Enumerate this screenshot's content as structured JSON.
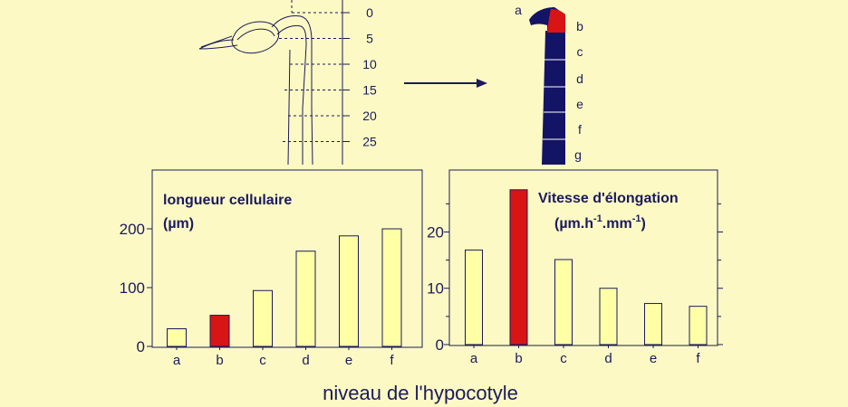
{
  "colors": {
    "background": "#fdf9c4",
    "text": "#1a1a5e",
    "bar_default": "#ffffa6",
    "bar_highlight": "#d91414",
    "hypocotyl_fill": "#141466",
    "highlight_zone": "#d91414"
  },
  "scale_labels": [
    "0",
    "5",
    "10",
    "15",
    "20",
    "25"
  ],
  "zone_labels": [
    "a",
    "b",
    "c",
    "d",
    "e",
    "f",
    "g"
  ],
  "xlabel": "niveau de l'hypocotyle",
  "chart_data": [
    {
      "type": "bar",
      "title": "longueur cellulaire",
      "unit": "(µm)",
      "categories": [
        "a",
        "b",
        "c",
        "d",
        "e",
        "f"
      ],
      "values": [
        30,
        53,
        95,
        162,
        188,
        200
      ],
      "highlight_index": 1,
      "ylim": [
        0,
        250
      ],
      "yticks": [
        0,
        100,
        200
      ],
      "ytick_labels": [
        "0",
        "100",
        "200"
      ],
      "grid": false
    },
    {
      "type": "bar",
      "title": "Vitesse d'élongation",
      "unit_parts": [
        "(µm.h",
        "-1",
        ".mm",
        "-1",
        ")"
      ],
      "categories": [
        "a",
        "b",
        "c",
        "d",
        "e",
        "f"
      ],
      "values": [
        16.8,
        27.5,
        15.1,
        10.0,
        7.3,
        6.8
      ],
      "highlight_index": 1,
      "ylim": [
        0,
        31
      ],
      "yticks": [
        0,
        10,
        20
      ],
      "ytick_labels": [
        "0",
        "10",
        "20"
      ],
      "grid": false
    }
  ]
}
